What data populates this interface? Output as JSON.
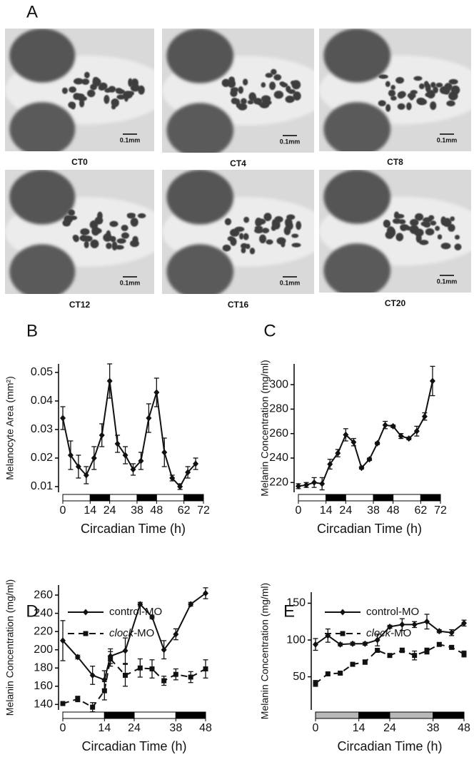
{
  "panel_a": {
    "label": "A",
    "images": [
      {
        "caption": "CT0",
        "scale_label": "0.1mm"
      },
      {
        "caption": "CT4",
        "scale_label": "0.1mm"
      },
      {
        "caption": "CT8",
        "scale_label": "0.1mm"
      },
      {
        "caption": "CT12",
        "scale_label": "0.1mm"
      },
      {
        "caption": "CT16",
        "scale_label": "0.1mm"
      },
      {
        "caption": "CT20",
        "scale_label": "0.1mm"
      }
    ]
  },
  "chart_data": [
    {
      "type": "line",
      "label": "B",
      "ylabel": "Melanocyte Area (mm²)",
      "xlabel": "Circadian Time (h)",
      "xlim": [
        0,
        72
      ],
      "xticks": [
        0,
        14,
        24,
        38,
        48,
        62,
        72
      ],
      "ylim": [
        0.008,
        0.053
      ],
      "yticks": [
        0.01,
        0.02,
        0.03,
        0.04,
        0.05
      ],
      "light_dark": [
        {
          "from": 0,
          "to": 14,
          "color": "#ffffff"
        },
        {
          "from": 14,
          "to": 24,
          "color": "#000000"
        },
        {
          "from": 24,
          "to": 38,
          "color": "#ffffff"
        },
        {
          "from": 38,
          "to": 48,
          "color": "#000000"
        },
        {
          "from": 48,
          "to": 62,
          "color": "#ffffff"
        },
        {
          "from": 62,
          "to": 72,
          "color": "#000000"
        }
      ],
      "series": [
        {
          "color": "#111111",
          "dash": false,
          "marker": "diamond",
          "x": [
            0,
            4,
            8,
            12,
            16,
            20,
            24,
            28,
            32,
            36,
            40,
            44,
            48,
            52,
            56,
            60,
            64,
            68
          ],
          "values": [
            0.034,
            0.021,
            0.017,
            0.014,
            0.02,
            0.028,
            0.047,
            0.025,
            0.021,
            0.016,
            0.019,
            0.034,
            0.043,
            0.022,
            0.013,
            0.01,
            0.015,
            0.018
          ],
          "errors": [
            0.004,
            0.005,
            0.004,
            0.003,
            0.004,
            0.004,
            0.006,
            0.003,
            0.003,
            0.002,
            0.003,
            0.005,
            0.005,
            0.005,
            0.001,
            0.001,
            0.002,
            0.002
          ]
        }
      ]
    },
    {
      "type": "line",
      "label": "C",
      "ylabel": "Melanin Concentration (mg/ml)",
      "xlabel": "Circadian Time (h)",
      "xlim": [
        0,
        72
      ],
      "xticks": [
        0,
        14,
        24,
        38,
        48,
        62,
        72
      ],
      "ylim": [
        212,
        317
      ],
      "yticks": [
        220,
        240,
        260,
        280,
        300
      ],
      "light_dark": [
        {
          "from": 0,
          "to": 14,
          "color": "#ffffff"
        },
        {
          "from": 14,
          "to": 24,
          "color": "#000000"
        },
        {
          "from": 24,
          "to": 38,
          "color": "#ffffff"
        },
        {
          "from": 38,
          "to": 48,
          "color": "#000000"
        },
        {
          "from": 48,
          "to": 62,
          "color": "#ffffff"
        },
        {
          "from": 62,
          "to": 72,
          "color": "#000000"
        }
      ],
      "series": [
        {
          "color": "#111111",
          "dash": false,
          "marker": "diamond",
          "x": [
            0,
            4,
            8,
            12,
            16,
            20,
            24,
            28,
            32,
            36,
            40,
            44,
            48,
            52,
            56,
            60,
            64,
            68
          ],
          "values": [
            217,
            218,
            220,
            219,
            235,
            244,
            259,
            253,
            232,
            239,
            252,
            267,
            266,
            258,
            256,
            262,
            274,
            303
          ],
          "errors": [
            2,
            2,
            4,
            5,
            4,
            3,
            5,
            3,
            1,
            1,
            1,
            3,
            1,
            2,
            1,
            4,
            3,
            12
          ]
        }
      ]
    },
    {
      "type": "line",
      "label": "D",
      "ylabel": "Melanin Concentration (mg/ml)",
      "xlabel": "Circadian Time (h)",
      "xlim": [
        0,
        48
      ],
      "xticks": [
        0,
        14,
        24,
        38,
        48
      ],
      "ylim": [
        134,
        271
      ],
      "yticks": [
        140,
        160,
        180,
        200,
        220,
        240,
        260
      ],
      "light_dark": [
        {
          "from": 0,
          "to": 14,
          "color": "#ffffff"
        },
        {
          "from": 14,
          "to": 24,
          "color": "#000000"
        },
        {
          "from": 24,
          "to": 38,
          "color": "#ffffff"
        },
        {
          "from": 38,
          "to": 48,
          "color": "#000000"
        }
      ],
      "series": [
        {
          "name": "control-MO",
          "color": "#111111",
          "dash": false,
          "marker": "diamond",
          "x": [
            0,
            5,
            10,
            14,
            16,
            21,
            26,
            30,
            34,
            38,
            43,
            48
          ],
          "values": [
            210,
            192,
            172,
            167,
            193,
            199,
            250,
            236,
            200,
            217,
            250,
            262
          ],
          "errors": [
            22,
            2,
            10,
            10,
            8,
            14,
            2,
            2,
            10,
            6,
            2,
            6
          ]
        },
        {
          "name": "clock-MO",
          "color": "#111111",
          "dash": true,
          "marker": "square",
          "x": [
            0,
            5,
            10,
            14,
            16,
            21,
            26,
            30,
            34,
            38,
            43,
            48
          ],
          "values": [
            141,
            146,
            137,
            155,
            190,
            172,
            180,
            179,
            166,
            173,
            170,
            179
          ],
          "errors": [
            2,
            3,
            5,
            10,
            8,
            12,
            10,
            10,
            5,
            6,
            6,
            10
          ]
        }
      ]
    },
    {
      "type": "line",
      "label": "E",
      "ylabel": "Melanin Concentration (mg/ml)",
      "xlabel": "Circadian Time (h)",
      "xlim": [
        0,
        48
      ],
      "xticks": [
        0,
        14,
        24,
        38,
        48
      ],
      "ylim": [
        5,
        165
      ],
      "yticks": [
        50,
        100,
        150
      ],
      "light_dark": [
        {
          "from": 0,
          "to": 14,
          "color": "#b8b8b8"
        },
        {
          "from": 14,
          "to": 24,
          "color": "#000000"
        },
        {
          "from": 24,
          "to": 38,
          "color": "#b8b8b8"
        },
        {
          "from": 38,
          "to": 48,
          "color": "#000000"
        }
      ],
      "series": [
        {
          "name": "control-MO",
          "color": "#111111",
          "dash": false,
          "marker": "diamond",
          "x": [
            0,
            4,
            8,
            12,
            16,
            20,
            24,
            28,
            32,
            36,
            40,
            44,
            48
          ],
          "values": [
            94,
            106,
            94,
            95,
            95,
            100,
            118,
            121,
            121,
            125,
            112,
            110,
            123
          ],
          "errors": [
            8,
            9,
            2,
            2,
            2,
            8,
            2,
            8,
            4,
            10,
            2,
            4,
            4
          ]
        },
        {
          "name": "clock-MO",
          "color": "#111111",
          "dash": true,
          "marker": "square",
          "x": [
            0,
            4,
            8,
            12,
            16,
            20,
            24,
            28,
            32,
            36,
            40,
            44,
            48
          ],
          "values": [
            41,
            54,
            55,
            67,
            70,
            86,
            79,
            86,
            79,
            85,
            94,
            90,
            81
          ],
          "errors": [
            4,
            2,
            2,
            2,
            3,
            2,
            1,
            3,
            6,
            4,
            2,
            2,
            4
          ]
        }
      ]
    }
  ]
}
